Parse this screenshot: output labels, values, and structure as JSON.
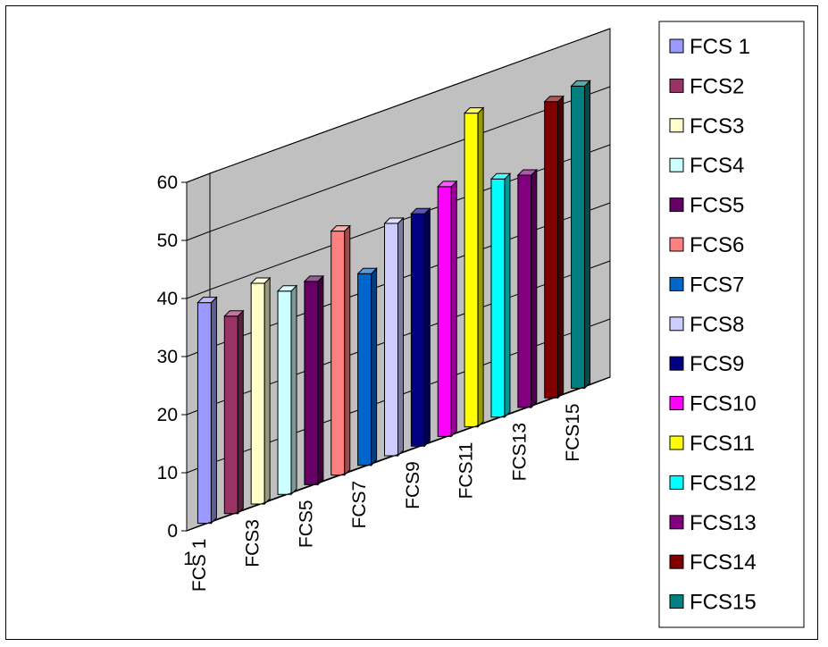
{
  "chart_data": {
    "type": "bar",
    "title": "",
    "xlabel": "",
    "ylabel": "",
    "corner_label": "1",
    "ylim": [
      0,
      60
    ],
    "yticks": [
      0,
      10,
      20,
      30,
      40,
      50,
      60
    ],
    "grid": true,
    "legend_position": "right",
    "categories": [
      "FCS 1",
      "FCS2",
      "FCS3",
      "FCS4",
      "FCS5",
      "FCS6",
      "FCS7",
      "FCS8",
      "FCS9",
      "FCS10",
      "FCS11",
      "FCS12",
      "FCS13",
      "FCS14",
      "FCS15"
    ],
    "category_tick_labels": [
      "FCS 1",
      "FCS3",
      "FCS5",
      "FCS7",
      "FCS9",
      "FCS11",
      "FCS13",
      "FCS15"
    ],
    "values": [
      38,
      34,
      38,
      35,
      35,
      42,
      33,
      40,
      40,
      43,
      54,
      41,
      40,
      51,
      52
    ],
    "colors": [
      "#9999ff",
      "#993366",
      "#ffffcc",
      "#ccffff",
      "#660066",
      "#ff8080",
      "#0066cc",
      "#ccccff",
      "#000080",
      "#ff00ff",
      "#ffff00",
      "#00ffff",
      "#800080",
      "#800000",
      "#008080"
    ]
  }
}
